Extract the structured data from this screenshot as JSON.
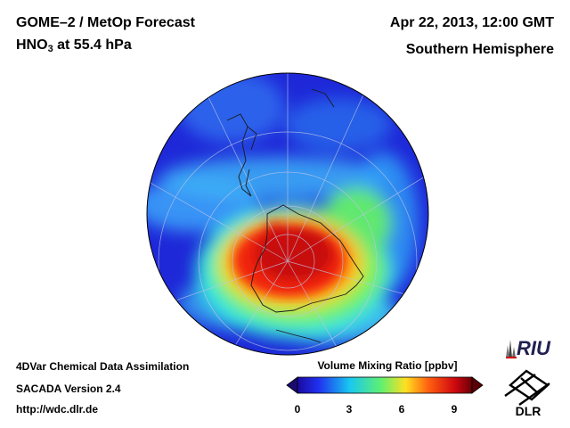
{
  "header": {
    "title_left": "GOME–2 / MetOp Forecast",
    "species_base": "HNO",
    "species_sub": "3",
    "species_rest": " at 55.4 hPa",
    "title_right": "Apr 22, 2013, 12:00 GMT",
    "region": "Southern Hemisphere"
  },
  "footer": {
    "line1": "4DVar Chemical Data Assimilation",
    "line2": "SACADA Version 2.4",
    "line3": "http://wdc.dlr.de"
  },
  "colorbar": {
    "title": "Volume Mixing Ratio [ppbv]",
    "ticks": [
      "0",
      "3",
      "6",
      "9"
    ],
    "range": [
      0,
      10
    ]
  },
  "logos": {
    "riu": "RIU",
    "dlr": "DLR"
  },
  "colors": {
    "low": "#1a0aa0",
    "mid_low": "#19c8f0",
    "mid": "#78f050",
    "mid_high": "#ffe020",
    "high": "#d00810"
  }
}
